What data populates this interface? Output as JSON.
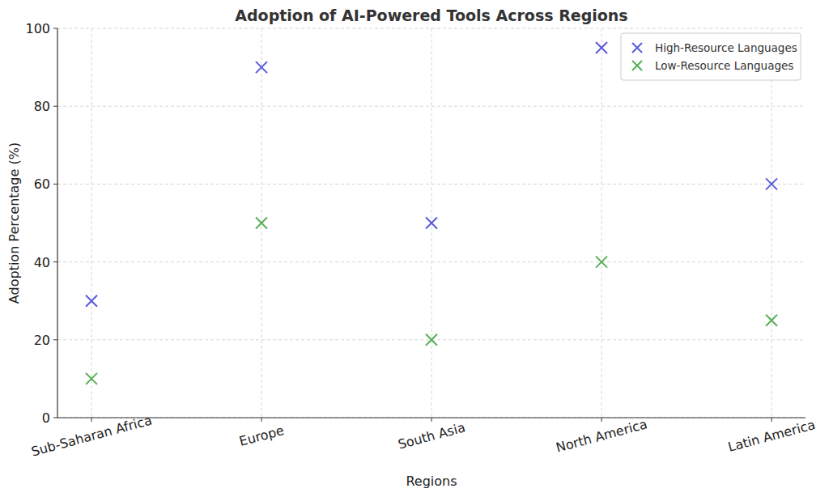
{
  "chart_data": {
    "type": "scatter",
    "title": "Adoption of AI-Powered Tools Across Regions",
    "x_label": "Regions",
    "y_label": "Adoption Percentage (%)",
    "categories": [
      "Sub-Saharan Africa",
      "Europe",
      "South Asia",
      "North America",
      "Latin America"
    ],
    "series": [
      {
        "name": "High-Resource Languages",
        "color": "#5b5bd9",
        "marker": "x",
        "values": [
          30,
          90,
          50,
          95,
          60
        ]
      },
      {
        "name": "Low-Resource Languages",
        "color": "#55b055",
        "marker": "x",
        "values": [
          10,
          50,
          20,
          40,
          25
        ]
      }
    ],
    "ylim": [
      0,
      100
    ],
    "yticks": [
      0,
      20,
      40,
      60,
      80,
      100
    ],
    "grid": true,
    "legend": "upper right"
  }
}
